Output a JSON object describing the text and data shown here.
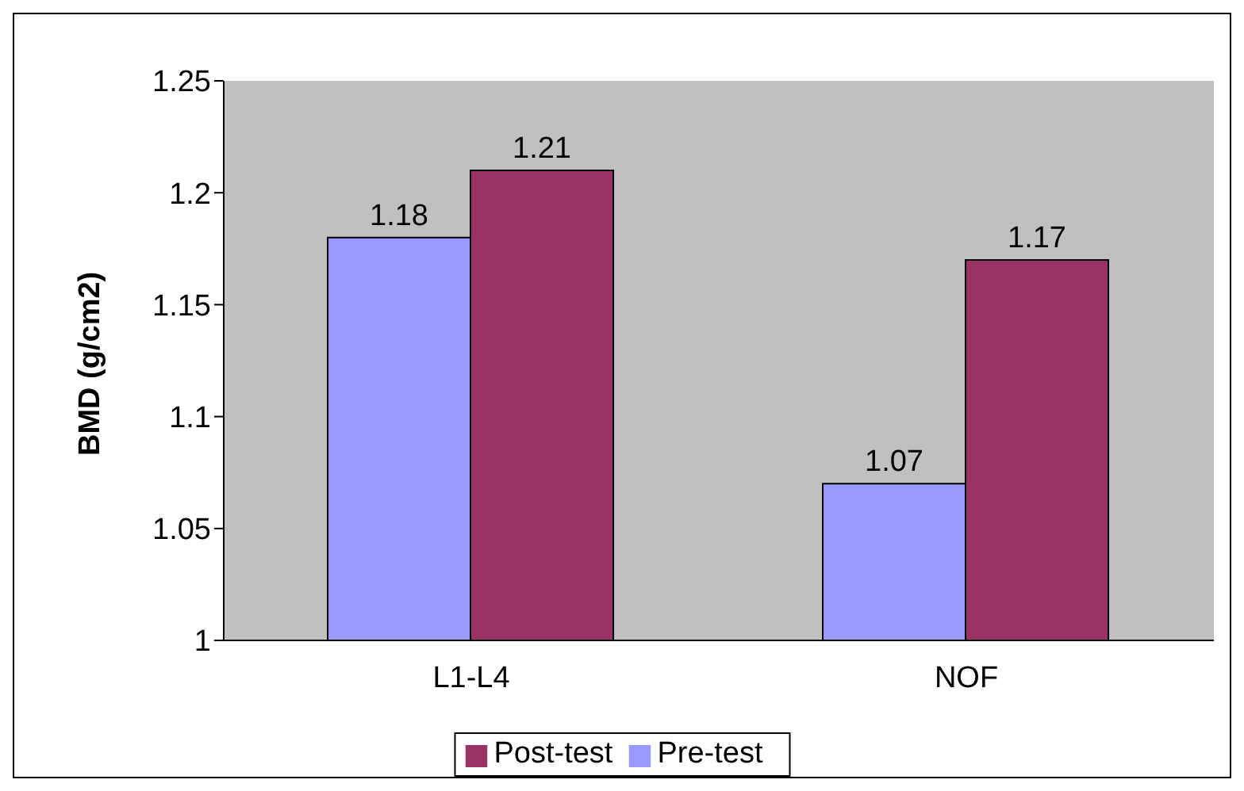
{
  "chart_data": {
    "type": "bar",
    "ylabel": "BMD (g/cm2)",
    "categories": [
      "L1-L4",
      "NOF"
    ],
    "series": [
      {
        "name": "Pre-test",
        "color": "#9999ff",
        "values": [
          1.18,
          1.07
        ]
      },
      {
        "name": "Post-test",
        "color": "#993366",
        "values": [
          1.21,
          1.17
        ]
      }
    ],
    "ylim": [
      1,
      1.25
    ],
    "yticks": [
      1,
      1.05,
      1.1,
      1.15,
      1.2,
      1.25
    ],
    "data_labels": true,
    "grid": false,
    "legend": "bottom"
  }
}
